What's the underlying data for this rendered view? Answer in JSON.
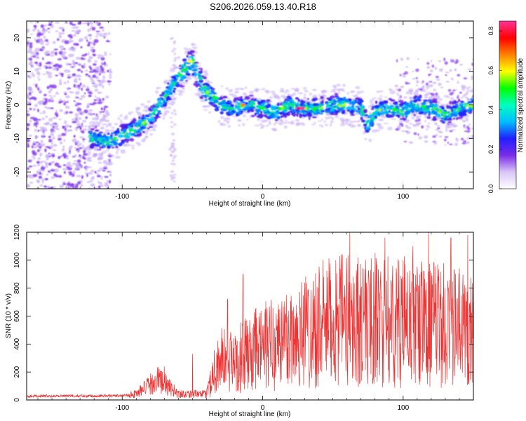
{
  "title": "S206.2026.059.13.40.R18",
  "chart_data": [
    {
      "type": "heatmap",
      "xlabel": "Height of straight line (km)",
      "ylabel": "Frequency (Hz)",
      "xlim": [
        -168,
        150
      ],
      "ylim": [
        -25,
        25
      ],
      "xticks": [
        -100,
        0,
        100
      ],
      "yticks": [
        -20,
        -10,
        0,
        10,
        20
      ],
      "xtick_labels": [
        "-100",
        "0",
        "100"
      ],
      "ytick_labels": [
        "-20",
        "-10",
        "0",
        "10",
        "20"
      ],
      "ridge": {
        "x": [
          -122,
          -110,
          -100,
          -90,
          -80,
          -75,
          -70,
          -62,
          -55,
          -50,
          -45,
          -40,
          -35,
          -30,
          -20,
          -10,
          0,
          10,
          20,
          30,
          40,
          50,
          60,
          70,
          75,
          80,
          90,
          100,
          110,
          120,
          130,
          140,
          150
        ],
        "y": [
          -10,
          -11,
          -9,
          -7,
          -4,
          -1,
          2,
          7,
          11,
          13,
          7,
          4,
          2,
          0,
          -1,
          0,
          -1,
          -2,
          0,
          -1,
          -1,
          0,
          0,
          -1,
          -6,
          -2,
          -1,
          -2,
          0,
          -1,
          -3,
          -1,
          0
        ]
      },
      "colorbar": {
        "label": "Normalized spectral amplitude",
        "range": [
          0.0,
          0.85
        ],
        "ticks": [
          0.0,
          0.2,
          0.4,
          0.6,
          0.8
        ],
        "tick_labels": [
          "0.0",
          "0.2",
          "0.4",
          "0.6",
          "0.8"
        ],
        "colors": [
          "#ffffff",
          "#d9c6f7",
          "#7a2be8",
          "#2020ff",
          "#00bfff",
          "#00ffbf",
          "#00ff00",
          "#ffff00",
          "#ff8000",
          "#ff0000",
          "#ff3399"
        ]
      },
      "colors": {
        "noise": "#8a3ff0",
        "noise_light": "#c9b0f5"
      }
    },
    {
      "type": "line",
      "xlabel": "Height of straight line (km)",
      "ylabel": "SNR (10 * v/v)",
      "xlim": [
        -168,
        150
      ],
      "ylim": [
        0,
        1200
      ],
      "xticks": [
        -100,
        0,
        100
      ],
      "yticks": [
        0,
        200,
        400,
        600,
        800,
        1000,
        1200
      ],
      "xtick_labels": [
        "-100",
        "0",
        "100"
      ],
      "ytick_labels": [
        "0",
        "200",
        "400",
        "600",
        "800",
        "1000",
        "1200"
      ],
      "color": "#ee3333",
      "envelope": {
        "x": [
          -168,
          -100,
          -90,
          -80,
          -74,
          -68,
          -60,
          -40,
          -35,
          -30,
          -25,
          -20,
          -10,
          0,
          20,
          40,
          60,
          80,
          100,
          120,
          140,
          150
        ],
        "y": [
          28,
          30,
          45,
          110,
          150,
          100,
          45,
          40,
          200,
          300,
          260,
          280,
          330,
          380,
          450,
          540,
          570,
          560,
          560,
          540,
          520,
          500
        ]
      },
      "spikes": {
        "x": [
          -70,
          -50,
          -25,
          -14,
          30,
          52,
          62,
          80,
          87,
          100,
          107,
          118,
          134,
          146
        ],
        "y": [
          240,
          330,
          720,
          900,
          840,
          1000,
          1200,
          1050,
          1160,
          1000,
          1100,
          1200,
          1160,
          1180
        ]
      }
    }
  ]
}
